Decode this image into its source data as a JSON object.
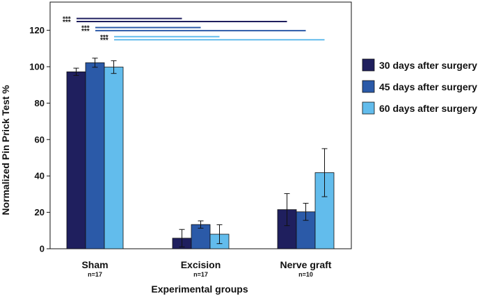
{
  "chart_data": {
    "type": "bar",
    "ylabel": "Normalized Pin Prick Test %",
    "xlabel": "Experimental groups",
    "ylim": [
      0,
      135
    ],
    "yticks": [
      0,
      20,
      40,
      60,
      80,
      100,
      120
    ],
    "categories": [
      "Sham",
      "Excision",
      "Nerve graft"
    ],
    "sample_sizes": [
      "n=17",
      "n=17",
      "n=10"
    ],
    "series": [
      {
        "name": "30 days after surgery",
        "color": "#1f1f5e",
        "values": [
          97.2,
          5.8,
          21.5
        ],
        "errors": [
          2.0,
          4.8,
          8.8
        ]
      },
      {
        "name": "45 days after surgery",
        "color": "#2b5aa8",
        "values": [
          102.2,
          13.3,
          20.3
        ],
        "errors": [
          2.5,
          2.0,
          4.7
        ]
      },
      {
        "name": "60 days after surgery",
        "color": "#62bcec",
        "values": [
          99.8,
          8.0,
          41.8
        ],
        "errors": [
          3.5,
          5.2,
          13.2
        ]
      }
    ],
    "significance": [
      {
        "label": "***",
        "series": 0,
        "from": 0,
        "to": 1,
        "y": 126.5
      },
      {
        "label": "***",
        "series": 0,
        "from": 0,
        "to": 2,
        "y": 124.8
      },
      {
        "label": "***",
        "series": 1,
        "from": 0,
        "to": 1,
        "y": 121.5
      },
      {
        "label": "***",
        "series": 1,
        "from": 0,
        "to": 2,
        "y": 119.8
      },
      {
        "label": "***",
        "series": 2,
        "from": 0,
        "to": 1,
        "y": 116.5
      },
      {
        "label": "***",
        "series": 2,
        "from": 0,
        "to": 2,
        "y": 114.8
      }
    ]
  }
}
